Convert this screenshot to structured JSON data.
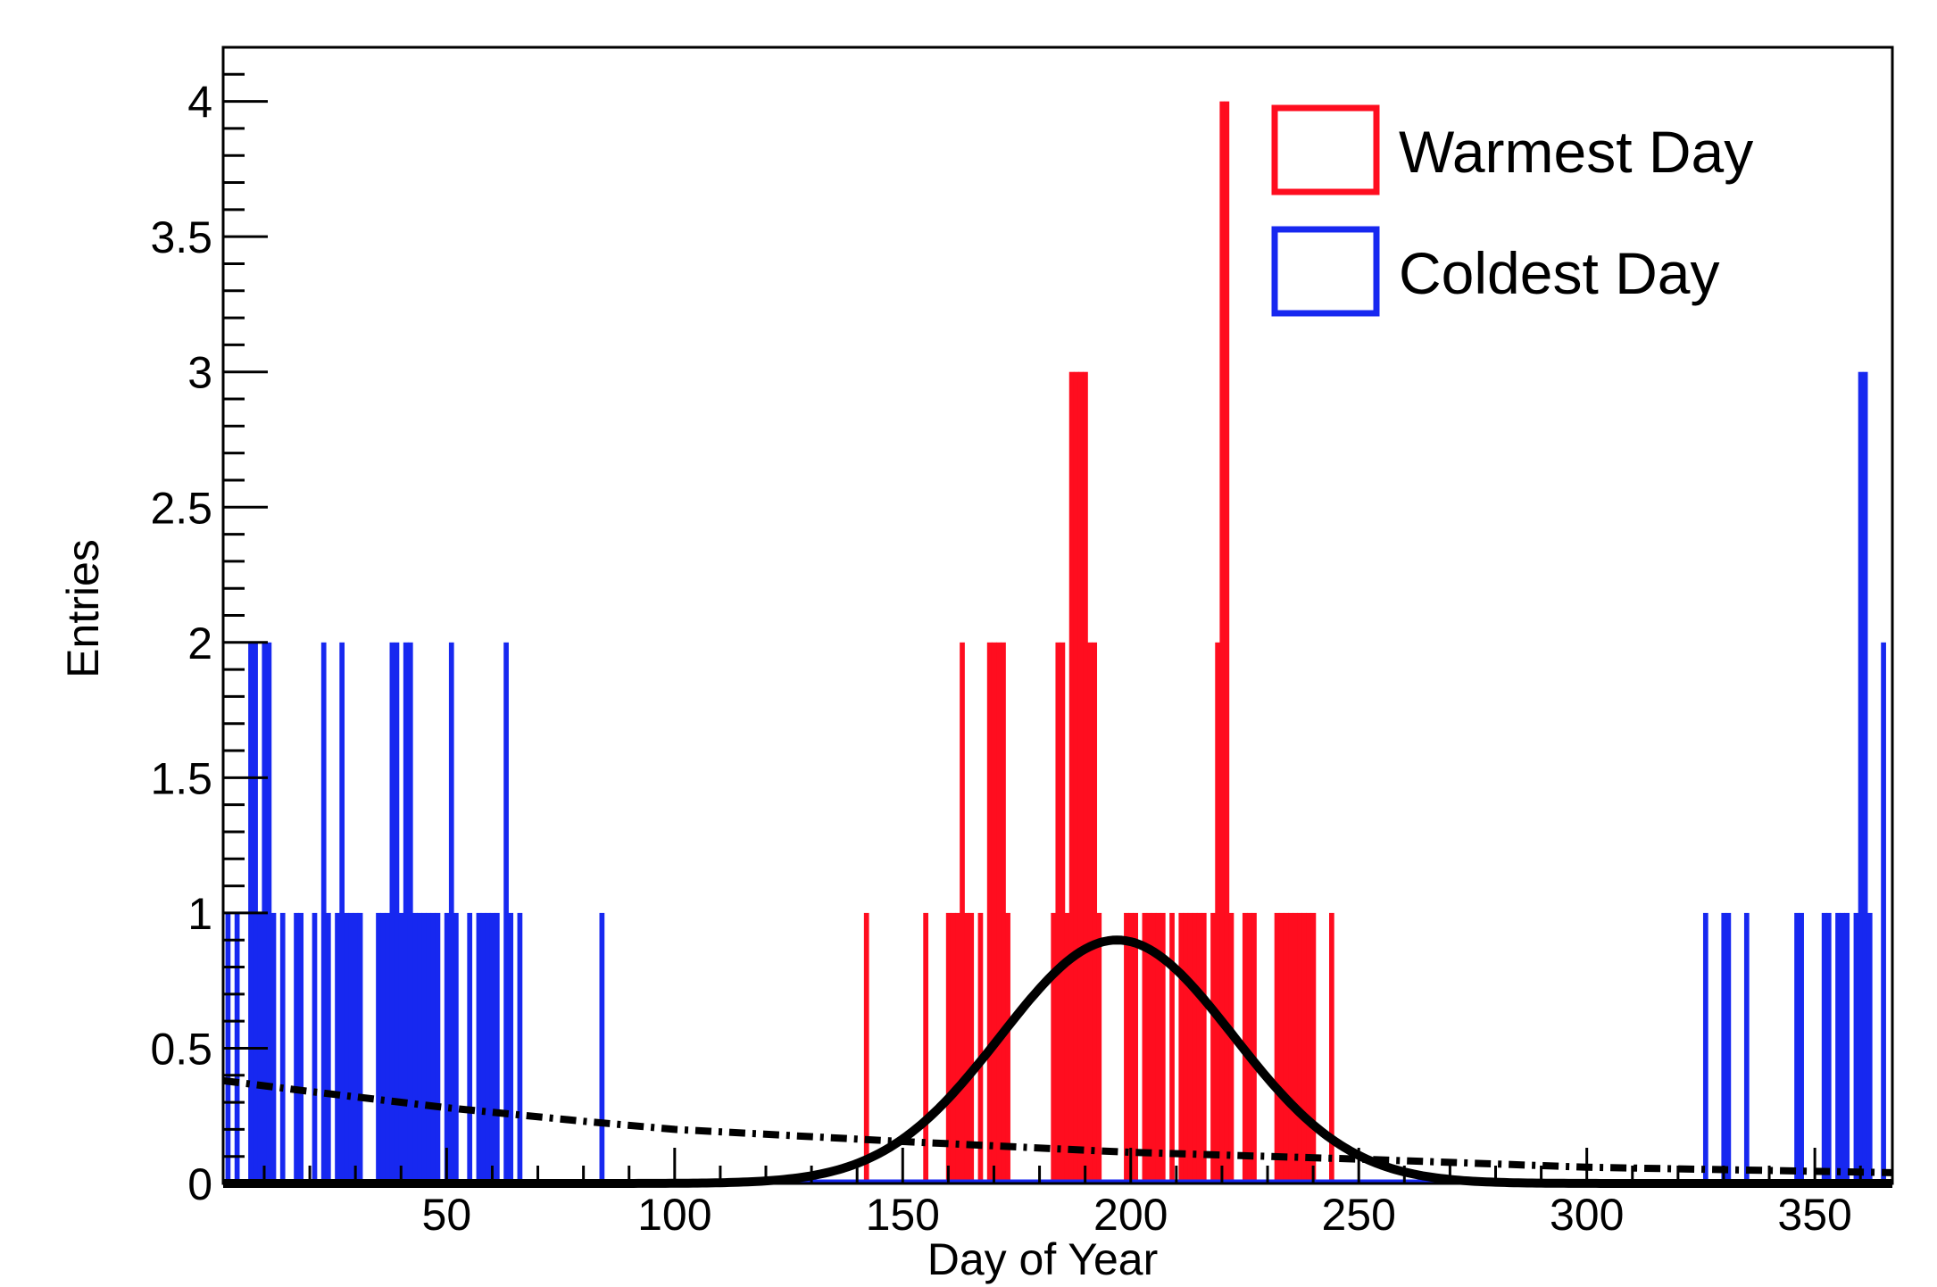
{
  "chart_data": {
    "type": "bar",
    "xlabel": "Day of Year",
    "ylabel": "Entries",
    "xlim": [
      1,
      367
    ],
    "ylim": [
      0,
      4.2
    ],
    "x_ticks": [
      50,
      100,
      150,
      200,
      250,
      300,
      350
    ],
    "x_tick_labels": [
      "50",
      "100",
      "150",
      "200",
      "250",
      "300",
      "350"
    ],
    "y_ticks": [
      0,
      0.5,
      1,
      1.5,
      2,
      2.5,
      3,
      3.5,
      4
    ],
    "y_tick_labels": [
      "0",
      "0.5",
      "1",
      "1.5",
      "2",
      "2.5",
      "3",
      "3.5",
      "4"
    ],
    "grid": false,
    "legend_position": "top-right",
    "series": [
      {
        "name": "Warmest Day",
        "color": "#ff0d1f",
        "style": "histogram",
        "points": [
          [
            142,
            1
          ],
          [
            155,
            1
          ],
          [
            160,
            1
          ],
          [
            161,
            1
          ],
          [
            162,
            1
          ],
          [
            163,
            2
          ],
          [
            164,
            1
          ],
          [
            165,
            1
          ],
          [
            167,
            1
          ],
          [
            169,
            2
          ],
          [
            170,
            2
          ],
          [
            171,
            2
          ],
          [
            172,
            2
          ],
          [
            173,
            1
          ],
          [
            183,
            1
          ],
          [
            184,
            2
          ],
          [
            185,
            2
          ],
          [
            186,
            1
          ],
          [
            187,
            3
          ],
          [
            188,
            3
          ],
          [
            189,
            3
          ],
          [
            190,
            3
          ],
          [
            191,
            2
          ],
          [
            192,
            2
          ],
          [
            193,
            1
          ],
          [
            199,
            1
          ],
          [
            200,
            1
          ],
          [
            201,
            1
          ],
          [
            203,
            1
          ],
          [
            204,
            1
          ],
          [
            205,
            1
          ],
          [
            206,
            1
          ],
          [
            207,
            1
          ],
          [
            209,
            1
          ],
          [
            211,
            1
          ],
          [
            212,
            1
          ],
          [
            213,
            1
          ],
          [
            214,
            1
          ],
          [
            215,
            1
          ],
          [
            216,
            1
          ],
          [
            218,
            1
          ],
          [
            219,
            2
          ],
          [
            220,
            4
          ],
          [
            221,
            4
          ],
          [
            222,
            1
          ],
          [
            225,
            1
          ],
          [
            226,
            1
          ],
          [
            227,
            1
          ],
          [
            232,
            1
          ],
          [
            233,
            1
          ],
          [
            234,
            1
          ],
          [
            235,
            1
          ],
          [
            236,
            1
          ],
          [
            237,
            1
          ],
          [
            238,
            1
          ],
          [
            239,
            1
          ],
          [
            240,
            1
          ],
          [
            244,
            1
          ]
        ]
      },
      {
        "name": "Coldest Day",
        "color": "#1728f0",
        "style": "histogram",
        "points": [
          [
            2,
            1
          ],
          [
            4,
            1
          ],
          [
            7,
            2
          ],
          [
            8,
            2
          ],
          [
            9,
            1
          ],
          [
            10,
            2
          ],
          [
            11,
            2
          ],
          [
            12,
            1
          ],
          [
            14,
            1
          ],
          [
            17,
            1
          ],
          [
            18,
            1
          ],
          [
            21,
            1
          ],
          [
            23,
            2
          ],
          [
            24,
            1
          ],
          [
            26,
            1
          ],
          [
            27,
            2
          ],
          [
            28,
            1
          ],
          [
            29,
            1
          ],
          [
            30,
            1
          ],
          [
            31,
            1
          ],
          [
            35,
            1
          ],
          [
            36,
            1
          ],
          [
            37,
            1
          ],
          [
            38,
            2
          ],
          [
            39,
            2
          ],
          [
            40,
            1
          ],
          [
            41,
            2
          ],
          [
            42,
            2
          ],
          [
            43,
            1
          ],
          [
            44,
            1
          ],
          [
            45,
            1
          ],
          [
            46,
            1
          ],
          [
            47,
            1
          ],
          [
            48,
            1
          ],
          [
            50,
            1
          ],
          [
            51,
            2
          ],
          [
            52,
            1
          ],
          [
            55,
            1
          ],
          [
            57,
            1
          ],
          [
            58,
            1
          ],
          [
            59,
            1
          ],
          [
            60,
            1
          ],
          [
            61,
            1
          ],
          [
            63,
            2
          ],
          [
            64,
            1
          ],
          [
            66,
            1
          ],
          [
            84,
            1
          ],
          [
            326,
            1
          ],
          [
            330,
            1
          ],
          [
            331,
            1
          ],
          [
            335,
            1
          ],
          [
            346,
            1
          ],
          [
            347,
            1
          ],
          [
            352,
            1
          ],
          [
            353,
            1
          ],
          [
            355,
            1
          ],
          [
            356,
            1
          ],
          [
            357,
            1
          ],
          [
            359,
            1
          ],
          [
            360,
            3
          ],
          [
            361,
            3
          ],
          [
            362,
            1
          ],
          [
            365,
            2
          ]
        ]
      },
      {
        "style": "solid-curve",
        "color": "#000000",
        "function": "gaussian",
        "amplitude": 0.9,
        "mean": 197,
        "sigma": 25.5
      },
      {
        "style": "dash-dot-curve",
        "color": "#000000",
        "function": "decay",
        "points": [
          [
            1,
            0.38
          ],
          [
            20,
            0.34
          ],
          [
            50,
            0.28
          ],
          [
            80,
            0.23
          ],
          [
            100,
            0.2
          ],
          [
            150,
            0.155
          ],
          [
            200,
            0.115
          ],
          [
            250,
            0.09
          ],
          [
            300,
            0.06
          ],
          [
            367,
            0.04
          ]
        ]
      }
    ]
  }
}
